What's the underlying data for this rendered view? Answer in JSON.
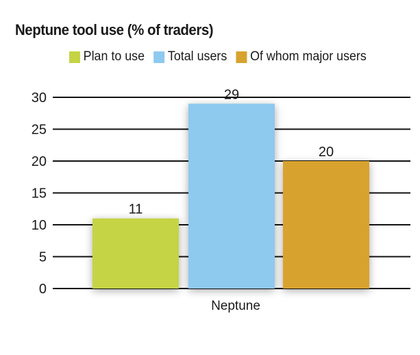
{
  "chart_data": {
    "type": "bar",
    "title": "Neptune tool use (% of traders)",
    "categories": [
      "Neptune"
    ],
    "series": [
      {
        "name": "Plan to use",
        "values": [
          11
        ],
        "color": "#c5d444"
      },
      {
        "name": "Total users",
        "values": [
          29
        ],
        "color": "#8ec9ee"
      },
      {
        "name": "Of whom major users",
        "values": [
          20
        ],
        "color": "#d7a22e"
      }
    ],
    "xlabel": "",
    "ylabel": "",
    "ylim": [
      0,
      30
    ],
    "yticks": [
      0,
      5,
      10,
      15,
      20,
      25,
      30
    ],
    "grid": true,
    "legend_position": "top"
  }
}
